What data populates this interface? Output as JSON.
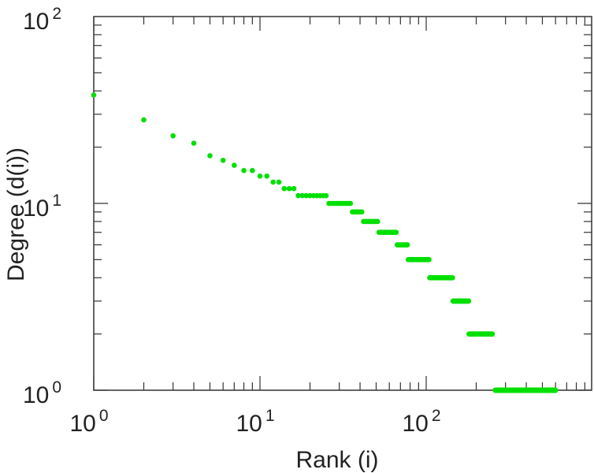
{
  "chart_data": {
    "type": "scatter",
    "xlabel": "Rank (i)",
    "ylabel": "Degree (d(i))",
    "xscale": "log",
    "yscale": "log",
    "xlim": [
      1,
      1000
    ],
    "ylim": [
      1,
      100
    ],
    "x_ticks": [
      {
        "base": "10",
        "exp": "0",
        "value": 1
      },
      {
        "base": "10",
        "exp": "1",
        "value": 10
      },
      {
        "base": "10",
        "exp": "2",
        "value": 100
      }
    ],
    "y_ticks": [
      {
        "base": "10",
        "exp": "0",
        "value": 1
      },
      {
        "base": "10",
        "exp": "1",
        "value": 10
      },
      {
        "base": "10",
        "exp": "2",
        "value": 100
      }
    ],
    "grid": false,
    "marker_color": "#00e000",
    "series": [
      {
        "runs": [
          {
            "degree": 38,
            "rank_from": 1,
            "rank_to": 1
          },
          {
            "degree": 28,
            "rank_from": 2,
            "rank_to": 2
          },
          {
            "degree": 23,
            "rank_from": 3,
            "rank_to": 3
          },
          {
            "degree": 21,
            "rank_from": 4,
            "rank_to": 4
          },
          {
            "degree": 18,
            "rank_from": 5,
            "rank_to": 5
          },
          {
            "degree": 17,
            "rank_from": 6,
            "rank_to": 6
          },
          {
            "degree": 16,
            "rank_from": 7,
            "rank_to": 7
          },
          {
            "degree": 15,
            "rank_from": 8,
            "rank_to": 9
          },
          {
            "degree": 14,
            "rank_from": 10,
            "rank_to": 11
          },
          {
            "degree": 13,
            "rank_from": 12,
            "rank_to": 13
          },
          {
            "degree": 12,
            "rank_from": 14,
            "rank_to": 16
          },
          {
            "degree": 11,
            "rank_from": 17,
            "rank_to": 25
          },
          {
            "degree": 10,
            "rank_from": 26,
            "rank_to": 35
          },
          {
            "degree": 9,
            "rank_from": 36,
            "rank_to": 41
          },
          {
            "degree": 8,
            "rank_from": 42,
            "rank_to": 51
          },
          {
            "degree": 7,
            "rank_from": 52,
            "rank_to": 66
          },
          {
            "degree": 6,
            "rank_from": 67,
            "rank_to": 77
          },
          {
            "degree": 5,
            "rank_from": 78,
            "rank_to": 104
          },
          {
            "degree": 4,
            "rank_from": 105,
            "rank_to": 144
          },
          {
            "degree": 3,
            "rank_from": 145,
            "rank_to": 180
          },
          {
            "degree": 2,
            "rank_from": 181,
            "rank_to": 250
          },
          {
            "degree": 1,
            "rank_from": 260,
            "rank_to": 600
          }
        ]
      }
    ]
  }
}
